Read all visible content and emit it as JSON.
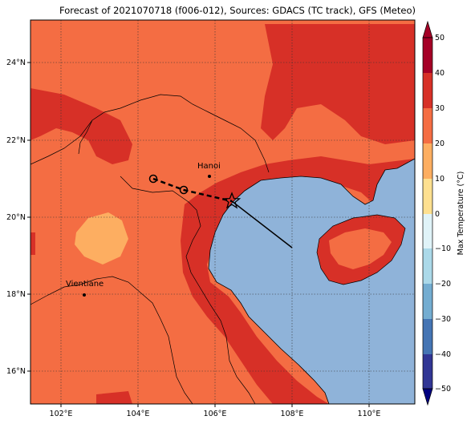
{
  "title": "Forecast of 2021070718 (f006-012), Sources: GDACS (TC track), GFS (Meteo)",
  "map": {
    "lat_ticks": [
      "24°N",
      "22°N",
      "20°N",
      "18°N",
      "16°N"
    ],
    "lon_ticks": [
      "102°E",
      "104°E",
      "106°E",
      "108°E",
      "110°E"
    ],
    "cities": [
      {
        "name": "Hanoi",
        "lon": 105.85,
        "lat": 21.03
      },
      {
        "name": "Vientiane",
        "lon": 102.6,
        "lat": 17.97
      }
    ],
    "track_past": [
      [
        104.4,
        21.0
      ],
      [
        105.2,
        20.7
      ],
      [
        106.4,
        20.4
      ]
    ],
    "track_forecast": [
      [
        106.4,
        20.4
      ],
      [
        108.0,
        19.2
      ]
    ],
    "storm_position": [
      106.4,
      20.4
    ],
    "gridlines": true
  },
  "colorbar": {
    "label": "Max Temperature (°C)",
    "ticks": [
      "50",
      "40",
      "30",
      "20",
      "10",
      "0",
      "−10",
      "−20",
      "−30",
      "−40",
      "−50"
    ],
    "colors": [
      "#a50026",
      "#d73027",
      "#f46d43",
      "#fdae61",
      "#fee090",
      "#e0f3f8",
      "#abd9e9",
      "#74add1",
      "#4575b4",
      "#313695"
    ],
    "top_color": "#a50026",
    "bottom_color": "#000080"
  },
  "colors": {
    "land_warm": "#f46d43",
    "land_hot": "#d73027",
    "land_mild": "#fdae61",
    "sea": "#8fb3d9"
  }
}
